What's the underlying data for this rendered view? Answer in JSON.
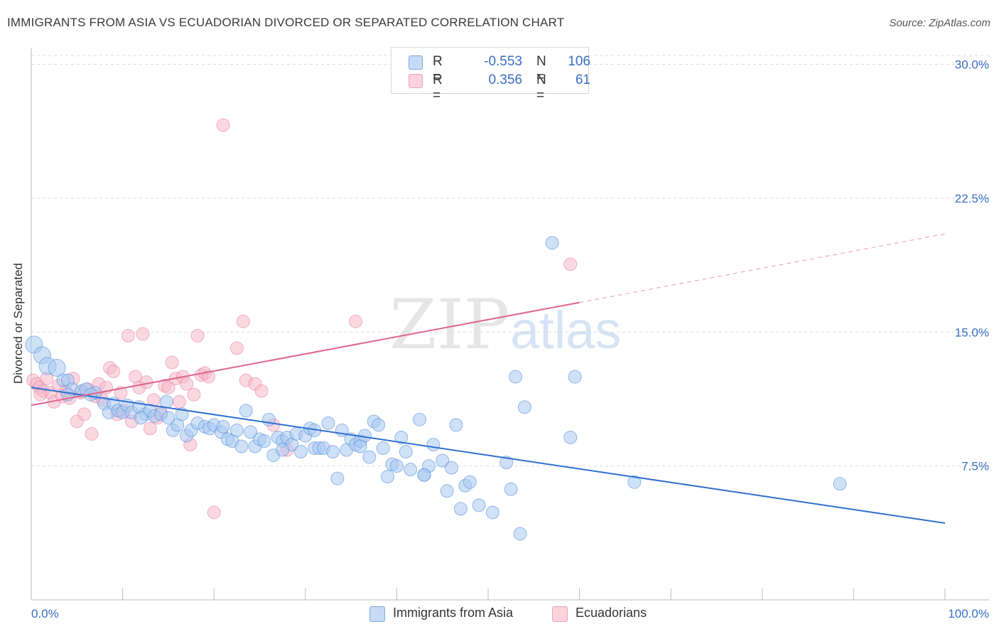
{
  "title": "IMMIGRANTS FROM ASIA VS ECUADORIAN DIVORCED OR SEPARATED CORRELATION CHART",
  "source": "Source: ZipAtlas.com",
  "watermark": {
    "zip": "ZIP",
    "atlas": "atlas"
  },
  "legend": {
    "rows": [
      {
        "r_label": "R =",
        "r_value": "-0.553",
        "n_label": "N =",
        "n_value": "106",
        "color": "#a8c8f0"
      },
      {
        "r_label": "R =",
        "r_value": "0.356",
        "n_label": "N =",
        "n_value": "61",
        "color": "#f6b8cb"
      }
    ]
  },
  "bottom_legend": [
    {
      "label": "Immigrants from Asia",
      "color": "#a8c8f0"
    },
    {
      "label": "Ecuadorians",
      "color": "#f6b8cb"
    }
  ],
  "chart_data": {
    "type": "scatter",
    "title": "IMMIGRANTS FROM ASIA VS ECUADORIAN DIVORCED OR SEPARATED CORRELATION CHART",
    "xlabel": "",
    "ylabel": "Divorced or Separated",
    "xlim": [
      0,
      100
    ],
    "ylim": [
      0,
      30.5
    ],
    "x_tick_labels": [
      "0.0%",
      "100.0%"
    ],
    "y_ticks": [
      7.5,
      15.0,
      22.5,
      30.0
    ],
    "y_tick_labels": [
      "7.5%",
      "15.0%",
      "22.5%",
      "30.0%"
    ],
    "grid": true,
    "legend_position": "top-center",
    "colors": {
      "asia": "#4a86d8",
      "asia_fill": "#a8c8f0",
      "ecu": "#e87a9c",
      "ecu_fill": "#f6b8cb",
      "axis_label": "#3a6fc4"
    },
    "series": [
      {
        "name": "Immigrants from Asia",
        "trend": {
          "x": [
            0,
            100
          ],
          "y": [
            11.9,
            4.3
          ],
          "dashed_from": null
        },
        "points": [
          [
            0.3,
            14.3
          ],
          [
            1.2,
            13.7
          ],
          [
            1.8,
            13.1
          ],
          [
            2.8,
            13.0
          ],
          [
            3.5,
            12.3
          ],
          [
            4.0,
            12.3
          ],
          [
            4.5,
            11.8
          ],
          [
            5.5,
            11.7
          ],
          [
            6.0,
            11.8
          ],
          [
            7.0,
            11.6
          ],
          [
            8.0,
            11.0
          ],
          [
            8.5,
            10.5
          ],
          [
            9.0,
            11.0
          ],
          [
            9.5,
            10.6
          ],
          [
            10.0,
            10.5
          ],
          [
            10.5,
            10.9
          ],
          [
            11.0,
            10.5
          ],
          [
            11.8,
            10.8
          ],
          [
            12.5,
            10.4
          ],
          [
            13.0,
            10.6
          ],
          [
            13.5,
            10.3
          ],
          [
            14.2,
            10.4
          ],
          [
            14.8,
            11.1
          ],
          [
            15.5,
            9.5
          ],
          [
            16.0,
            9.8
          ],
          [
            16.5,
            10.4
          ],
          [
            17.0,
            9.2
          ],
          [
            17.5,
            9.5
          ],
          [
            18.2,
            9.9
          ],
          [
            19.0,
            9.7
          ],
          [
            19.5,
            9.6
          ],
          [
            20.0,
            9.8
          ],
          [
            20.8,
            9.4
          ],
          [
            21.5,
            9.0
          ],
          [
            22.0,
            8.9
          ],
          [
            22.5,
            9.5
          ],
          [
            23.0,
            8.6
          ],
          [
            23.5,
            10.6
          ],
          [
            24.0,
            9.4
          ],
          [
            24.5,
            8.6
          ],
          [
            25.0,
            9.0
          ],
          [
            25.5,
            8.9
          ],
          [
            26.0,
            10.1
          ],
          [
            26.5,
            8.1
          ],
          [
            27.0,
            9.1
          ],
          [
            27.5,
            8.9
          ],
          [
            28.0,
            9.1
          ],
          [
            28.5,
            8.7
          ],
          [
            29.0,
            9.3
          ],
          [
            29.5,
            8.3
          ],
          [
            30.0,
            9.2
          ],
          [
            30.5,
            9.6
          ],
          [
            31.0,
            8.5
          ],
          [
            31.5,
            8.5
          ],
          [
            32.0,
            8.5
          ],
          [
            32.5,
            9.9
          ],
          [
            33.0,
            8.3
          ],
          [
            33.5,
            6.8
          ],
          [
            34.0,
            9.5
          ],
          [
            34.5,
            8.4
          ],
          [
            35.0,
            9.0
          ],
          [
            35.5,
            8.7
          ],
          [
            36.0,
            8.9
          ],
          [
            36.5,
            9.2
          ],
          [
            37.0,
            8.0
          ],
          [
            37.5,
            10.0
          ],
          [
            38.0,
            9.8
          ],
          [
            38.5,
            8.5
          ],
          [
            39.0,
            6.9
          ],
          [
            39.5,
            7.6
          ],
          [
            40.0,
            7.5
          ],
          [
            40.5,
            9.1
          ],
          [
            41.0,
            8.3
          ],
          [
            41.5,
            7.3
          ],
          [
            42.5,
            10.1
          ],
          [
            43.0,
            7.0
          ],
          [
            43.5,
            7.5
          ],
          [
            44.0,
            8.7
          ],
          [
            45.0,
            7.8
          ],
          [
            45.5,
            6.1
          ],
          [
            46.0,
            7.4
          ],
          [
            46.5,
            9.8
          ],
          [
            47.0,
            5.1
          ],
          [
            47.5,
            6.4
          ],
          [
            48.0,
            6.6
          ],
          [
            49.0,
            5.3
          ],
          [
            50.5,
            4.9
          ],
          [
            52.0,
            7.7
          ],
          [
            52.5,
            6.2
          ],
          [
            53.0,
            12.5
          ],
          [
            53.5,
            3.7
          ],
          [
            54.0,
            10.8
          ],
          [
            57.0,
            20.0
          ],
          [
            59.0,
            9.1
          ],
          [
            59.5,
            12.5
          ],
          [
            66.0,
            6.6
          ],
          [
            88.5,
            6.5
          ],
          [
            43.0,
            7.0
          ],
          [
            36.0,
            8.6
          ],
          [
            31.0,
            9.5
          ],
          [
            27.5,
            8.4
          ],
          [
            21.0,
            9.7
          ],
          [
            15.0,
            10.2
          ],
          [
            12.0,
            10.2
          ],
          [
            6.5,
            11.5
          ],
          [
            4.0,
            11.5
          ]
        ]
      },
      {
        "name": "Ecuadorians",
        "trend": {
          "x": [
            0,
            100
          ],
          "y": [
            10.9,
            20.5
          ],
          "dashed_from": 60
        },
        "points": [
          [
            0.2,
            12.3
          ],
          [
            0.6,
            12.1
          ],
          [
            0.9,
            11.9
          ],
          [
            1.3,
            11.7
          ],
          [
            1.7,
            12.4
          ],
          [
            2.1,
            11.6
          ],
          [
            2.5,
            11.1
          ],
          [
            3.0,
            12.0
          ],
          [
            3.4,
            11.4
          ],
          [
            3.8,
            11.7
          ],
          [
            4.2,
            11.3
          ],
          [
            4.6,
            12.4
          ],
          [
            5.0,
            10.0
          ],
          [
            5.4,
            11.6
          ],
          [
            5.8,
            10.4
          ],
          [
            6.2,
            11.8
          ],
          [
            6.6,
            9.3
          ],
          [
            7.0,
            11.4
          ],
          [
            7.4,
            12.1
          ],
          [
            7.8,
            11.2
          ],
          [
            8.2,
            11.9
          ],
          [
            8.6,
            13.0
          ],
          [
            9.0,
            12.8
          ],
          [
            9.4,
            10.4
          ],
          [
            9.8,
            11.6
          ],
          [
            10.2,
            10.6
          ],
          [
            10.6,
            14.8
          ],
          [
            11.0,
            10.0
          ],
          [
            11.4,
            12.5
          ],
          [
            11.8,
            11.9
          ],
          [
            12.2,
            14.9
          ],
          [
            12.6,
            12.2
          ],
          [
            13.0,
            9.6
          ],
          [
            13.4,
            11.2
          ],
          [
            13.8,
            10.2
          ],
          [
            14.2,
            10.5
          ],
          [
            14.6,
            12.0
          ],
          [
            15.0,
            11.9
          ],
          [
            15.4,
            13.3
          ],
          [
            15.8,
            12.4
          ],
          [
            16.2,
            11.1
          ],
          [
            16.6,
            12.5
          ],
          [
            17.0,
            12.1
          ],
          [
            17.4,
            8.7
          ],
          [
            17.8,
            11.5
          ],
          [
            18.2,
            14.8
          ],
          [
            18.6,
            12.6
          ],
          [
            19.0,
            12.7
          ],
          [
            19.4,
            12.5
          ],
          [
            20.0,
            4.9
          ],
          [
            21.0,
            26.6
          ],
          [
            22.5,
            14.1
          ],
          [
            23.2,
            15.6
          ],
          [
            23.5,
            12.3
          ],
          [
            24.5,
            12.1
          ],
          [
            25.2,
            11.7
          ],
          [
            26.5,
            9.8
          ],
          [
            28.0,
            8.4
          ],
          [
            35.5,
            15.6
          ],
          [
            59.0,
            18.8
          ],
          [
            1.0,
            11.5
          ]
        ]
      }
    ]
  }
}
